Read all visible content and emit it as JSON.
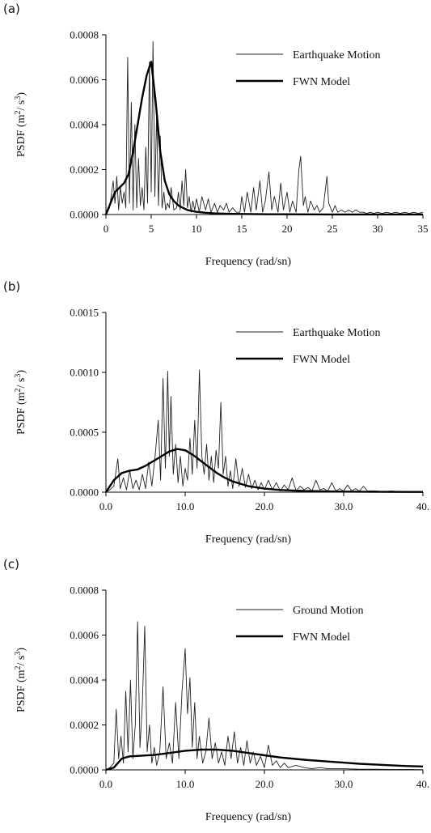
{
  "chart_data": [
    {
      "panel_label": "(a)",
      "type": "line",
      "xlabel": "Frequency (rad/sn)",
      "ylabel_base": "PSDF (m",
      "ylabel_exp1": "2",
      "ylabel_mid": "/ s",
      "ylabel_exp2": "3",
      "ylabel_end": ")",
      "xlim": [
        0,
        35
      ],
      "ylim": [
        0,
        0.0008
      ],
      "xticks": [
        0,
        5,
        10,
        15,
        20,
        25,
        30,
        35
      ],
      "xtick_labels": [
        "0",
        "5",
        "10",
        "15",
        "20",
        "25",
        "30",
        "35"
      ],
      "yticks": [
        0,
        0.0002,
        0.0004,
        0.0006,
        0.0008
      ],
      "ytick_labels": [
        "0.0000",
        "0.0002",
        "0.0004",
        "0.0006",
        "0.0008"
      ],
      "legend": [
        "Earthquake Motion",
        "FWN Model"
      ],
      "series": [
        {
          "name": "Earthquake Motion",
          "x": [
            0,
            0.4,
            0.8,
            1.0,
            1.2,
            1.4,
            1.6,
            1.8,
            2.0,
            2.2,
            2.4,
            2.6,
            2.8,
            3.0,
            3.2,
            3.4,
            3.6,
            3.8,
            4.0,
            4.2,
            4.4,
            4.6,
            4.8,
            5.0,
            5.2,
            5.4,
            5.6,
            5.8,
            6.0,
            6.2,
            6.4,
            6.6,
            6.8,
            7.0,
            7.2,
            7.5,
            7.8,
            8.0,
            8.2,
            8.4,
            8.6,
            8.8,
            9.0,
            9.2,
            9.4,
            9.6,
            9.8,
            10.0,
            10.3,
            10.6,
            11.0,
            11.3,
            11.6,
            12.0,
            12.3,
            12.6,
            13.0,
            13.3,
            13.6,
            14.0,
            14.4,
            14.8,
            15.0,
            15.3,
            15.6,
            16.0,
            16.3,
            16.6,
            17.0,
            17.3,
            17.6,
            18.0,
            18.3,
            18.6,
            19.0,
            19.3,
            19.6,
            20.0,
            20.3,
            20.6,
            21.0,
            21.3,
            21.5,
            21.8,
            22.0,
            22.3,
            22.6,
            23.0,
            23.3,
            23.6,
            24.0,
            24.2,
            24.4,
            24.6,
            24.8,
            25.0,
            25.3,
            25.6,
            26.0,
            26.4,
            26.8,
            27.2,
            27.6,
            28.0,
            28.4,
            28.8,
            29.2,
            29.6,
            30.0,
            30.5,
            31.0,
            31.5,
            32.0,
            32.5,
            33.0,
            33.5,
            34.0,
            34.5,
            35.0
          ],
          "y": [
            0,
            3e-05,
            0.00015,
            5e-05,
            0.00017,
            2e-05,
            0.00012,
            5e-05,
            0.0001,
            3e-05,
            0.0007,
            5e-05,
            0.0005,
            2e-05,
            0.0004,
            3e-05,
            0.00025,
            4e-05,
            0.00012,
            2e-05,
            0.0003,
            5e-05,
            0.00068,
            0.0001,
            0.00077,
            8e-05,
            0.00045,
            4e-05,
            0.00035,
            3e-05,
            0.0001,
            2e-05,
            5e-05,
            3e-05,
            0.00012,
            2e-05,
            3e-05,
            0.0001,
            2e-05,
            0.00015,
            4e-05,
            0.0002,
            3e-05,
            8e-05,
            1e-05,
            6e-05,
            2e-05,
            7e-05,
            1e-05,
            8e-05,
            2e-05,
            7e-05,
            1e-05,
            5e-05,
            1e-05,
            4e-05,
            2e-05,
            5e-05,
            1e-05,
            3e-05,
            1e-05,
            1e-05,
            8e-05,
            1e-05,
            0.0001,
            1e-05,
            0.00012,
            2e-05,
            0.00015,
            1e-05,
            6e-05,
            0.00019,
            2e-05,
            8e-05,
            1e-05,
            0.00014,
            2e-05,
            0.0001,
            1e-05,
            6e-05,
            1e-05,
            0.0002,
            0.00026,
            4e-05,
            8e-05,
            1e-05,
            6e-05,
            2e-05,
            4e-05,
            1e-05,
            3e-05,
            0.0001,
            0.00017,
            5e-05,
            3e-05,
            1e-05,
            4e-05,
            1e-05,
            2e-05,
            1e-05,
            2e-05,
            1e-05,
            2e-05,
            1e-05,
            1e-05,
            5e-06,
            1e-05,
            5e-06,
            1e-05,
            5e-06,
            1e-05,
            5e-06,
            1e-05,
            5e-06,
            1e-05,
            5e-06,
            1e-05,
            5e-06,
            1e-05
          ]
        },
        {
          "name": "FWN Model",
          "x": [
            0,
            0.5,
            1.0,
            1.5,
            2.0,
            2.5,
            3.0,
            3.5,
            4.0,
            4.5,
            5.0,
            5.5,
            6.0,
            6.5,
            7.0,
            7.5,
            8.0,
            9.0,
            10.0,
            11.0,
            12.0,
            14.0,
            16.0,
            18.0,
            20.0,
            25.0,
            30.0,
            35.0
          ],
          "y": [
            0,
            5e-05,
            0.0001,
            0.00012,
            0.00014,
            0.00018,
            0.00028,
            0.0004,
            0.00052,
            0.00062,
            0.00068,
            0.0005,
            0.00028,
            0.00015,
            9e-05,
            6e-05,
            4e-05,
            2e-05,
            1.2e-05,
            8e-06,
            5e-06,
            3e-06,
            2e-06,
            1.2e-06,
            1e-06,
            5e-07,
            3e-07,
            1e-07
          ]
        }
      ]
    },
    {
      "panel_label": "(b)",
      "type": "line",
      "xlabel": "Frequency (rad/sn)",
      "ylabel_base": "PSDF (m",
      "ylabel_exp1": "2",
      "ylabel_mid": "/ s",
      "ylabel_exp2": "3",
      "ylabel_end": ")",
      "xlim": [
        0,
        40
      ],
      "ylim": [
        0,
        0.0015
      ],
      "xticks": [
        0,
        10,
        20,
        30,
        40
      ],
      "xtick_labels": [
        "0.0",
        "10.0",
        "20.0",
        "30.0",
        "40."
      ],
      "yticks": [
        0,
        0.0005,
        0.001,
        0.0015
      ],
      "ytick_labels": [
        "0.0000",
        "0.0005",
        "0.0010",
        "0.0015"
      ],
      "legend": [
        "Earthquake Motion",
        "FWN Model"
      ],
      "series": [
        {
          "name": "Earthquake Motion",
          "x": [
            0,
            0.5,
            1.0,
            1.5,
            1.8,
            2.2,
            2.6,
            3.0,
            3.4,
            3.8,
            4.2,
            4.6,
            5.0,
            5.4,
            5.8,
            6.2,
            6.6,
            6.9,
            7.2,
            7.5,
            7.8,
            8.0,
            8.2,
            8.5,
            8.8,
            9.1,
            9.4,
            9.7,
            10.0,
            10.3,
            10.6,
            10.9,
            11.2,
            11.5,
            11.8,
            12.1,
            12.4,
            12.7,
            13.0,
            13.3,
            13.6,
            13.9,
            14.2,
            14.5,
            14.8,
            15.1,
            15.4,
            15.7,
            16.0,
            16.4,
            16.8,
            17.2,
            17.6,
            18.0,
            18.4,
            18.8,
            19.2,
            19.6,
            20.0,
            20.5,
            21.0,
            21.5,
            22.0,
            22.5,
            23.0,
            23.5,
            24.0,
            24.5,
            25.0,
            25.5,
            26.0,
            26.5,
            27.0,
            27.5,
            28.0,
            28.5,
            29.0,
            29.5,
            30.0,
            30.5,
            31.0,
            31.5,
            32.0,
            32.5,
            33.0,
            34.0,
            35.0,
            36.0,
            37.0,
            38.0,
            39.0,
            40.0
          ],
          "y": [
            0,
            2e-05,
            5e-05,
            0.00028,
            3e-05,
            0.00012,
            2e-05,
            0.00018,
            3e-05,
            0.0001,
            2e-05,
            0.00015,
            3e-05,
            0.00025,
            5e-05,
            0.0003,
            0.0006,
            0.0001,
            0.00095,
            0.0002,
            0.00101,
            0.0003,
            0.0008,
            0.00015,
            0.0004,
            8e-05,
            0.0003,
            5e-05,
            0.0002,
            0.0001,
            0.00045,
            0.00015,
            0.0006,
            0.0002,
            0.00102,
            0.0003,
            0.00015,
            0.0004,
            0.0001,
            0.0003,
            8e-05,
            0.00035,
            0.0002,
            0.00075,
            0.00015,
            0.0003,
            5e-05,
            0.00018,
            3e-05,
            0.00028,
            5e-05,
            0.0002,
            4e-05,
            0.00015,
            3e-05,
            0.0001,
            2e-05,
            8e-05,
            2e-05,
            0.0001,
            2e-05,
            8e-05,
            1e-05,
            6e-05,
            2e-05,
            0.00012,
            1e-05,
            5e-05,
            2e-05,
            4e-05,
            1e-05,
            0.0001,
            2e-05,
            3e-05,
            1e-05,
            8e-05,
            1e-05,
            3e-05,
            1e-05,
            6e-05,
            1e-05,
            3e-05,
            1e-05,
            5e-05,
            1e-05,
            1e-05,
            5e-06,
            1e-05,
            5e-06,
            5e-06,
            5e-06,
            0
          ]
        },
        {
          "name": "FWN Model",
          "x": [
            0,
            1.0,
            2.0,
            3.0,
            4.0,
            5.0,
            6.0,
            7.0,
            8.0,
            9.0,
            10.0,
            11.0,
            12.0,
            13.0,
            14.0,
            15.0,
            16.0,
            18.0,
            20.0,
            22.0,
            25.0,
            30.0,
            35.0,
            40.0
          ],
          "y": [
            0,
            0.0001,
            0.00016,
            0.00018,
            0.00019,
            0.00022,
            0.00026,
            0.0003,
            0.00034,
            0.00036,
            0.00035,
            0.00031,
            0.00026,
            0.00021,
            0.00016,
            0.00012,
            9e-05,
            5e-05,
            3e-05,
            1.8e-05,
            1e-05,
            5e-06,
            3e-06,
            2e-06
          ]
        }
      ]
    },
    {
      "panel_label": "(c)",
      "type": "line",
      "xlabel": "Frequency (rad/sn)",
      "ylabel_base": "PSDF (m",
      "ylabel_exp1": "2",
      "ylabel_mid": "/ s",
      "ylabel_exp2": "3",
      "ylabel_end": ")",
      "xlim": [
        0,
        40
      ],
      "ylim": [
        0,
        0.0008
      ],
      "xticks": [
        0,
        10,
        20,
        30,
        40
      ],
      "xtick_labels": [
        "0.0",
        "10.0",
        "20.0",
        "30.0",
        "40."
      ],
      "yticks": [
        0,
        0.0002,
        0.0004,
        0.0006,
        0.0008
      ],
      "ytick_labels": [
        "0.0000",
        "0.0002",
        "0.0004",
        "0.0006",
        "0.0008"
      ],
      "legend": [
        "Ground Motion",
        "FWN Model"
      ],
      "series": [
        {
          "name": "Ground Motion",
          "x": [
            0,
            0.5,
            1.0,
            1.3,
            1.6,
            1.9,
            2.2,
            2.5,
            2.8,
            3.1,
            3.4,
            3.7,
            4.0,
            4.3,
            4.6,
            4.9,
            5.2,
            5.5,
            5.8,
            6.1,
            6.4,
            6.8,
            7.2,
            7.6,
            8.0,
            8.4,
            8.8,
            9.2,
            9.6,
            10.0,
            10.3,
            10.6,
            10.9,
            11.2,
            11.5,
            11.8,
            12.2,
            12.6,
            13.0,
            13.4,
            13.8,
            14.2,
            14.6,
            15.0,
            15.4,
            15.8,
            16.2,
            16.6,
            17.0,
            17.4,
            17.8,
            18.2,
            18.6,
            19.0,
            19.5,
            20.0,
            20.5,
            21.0,
            21.5,
            22.0,
            22.5,
            23.0,
            24.0,
            25.0,
            26.0,
            27.0,
            28.0,
            29.0,
            30.0,
            32.0,
            34.0,
            36.0,
            38.0,
            40.0
          ],
          "y": [
            0,
            1e-05,
            3e-05,
            0.00027,
            5e-05,
            0.00015,
            3e-05,
            0.00035,
            8e-05,
            0.0004,
            5e-05,
            0.0002,
            0.00066,
            0.0001,
            0.0003,
            0.00064,
            8e-05,
            0.0002,
            3e-05,
            0.0001,
            2e-05,
            8e-05,
            0.00037,
            5e-05,
            0.00012,
            3e-05,
            0.0003,
            5e-05,
            0.00035,
            0.00054,
            0.00025,
            0.00041,
            0.0001,
            0.0003,
            5e-05,
            0.00015,
            3e-05,
            8e-05,
            0.00023,
            5e-05,
            0.00012,
            3e-05,
            8e-05,
            2e-05,
            0.00015,
            5e-05,
            0.00017,
            3e-05,
            0.0001,
            2e-05,
            0.00013,
            3e-05,
            8e-05,
            2e-05,
            6e-05,
            1e-05,
            0.00011,
            2e-05,
            4e-05,
            1e-05,
            3e-05,
            1e-05,
            2e-05,
            1e-05,
            5e-06,
            1e-05,
            5e-06,
            5e-06,
            5e-06,
            3e-06,
            3e-06,
            2e-06,
            2e-06,
            1e-06
          ]
        },
        {
          "name": "FWN Model",
          "x": [
            0,
            0.5,
            1.0,
            1.5,
            2.0,
            2.5,
            3.0,
            4.0,
            5.0,
            6.0,
            8.0,
            10.0,
            12.0,
            14.0,
            16.0,
            18.0,
            20.0,
            22.0,
            25.0,
            28.0,
            30.0,
            32.0,
            35.0,
            38.0,
            40.0
          ],
          "y": [
            0,
            5e-06,
            1e-05,
            3e-05,
            5e-05,
            5.5e-05,
            6e-05,
            6.2e-05,
            6.4e-05,
            6.6e-05,
            7.5e-05,
            8.5e-05,
            9e-05,
            9e-05,
            8.5e-05,
            7.5e-05,
            6.5e-05,
            5.5e-05,
            4.5e-05,
            3.7e-05,
            3.2e-05,
            2.7e-05,
            2.2e-05,
            1.7e-05,
            1.5e-05
          ]
        }
      ]
    }
  ]
}
